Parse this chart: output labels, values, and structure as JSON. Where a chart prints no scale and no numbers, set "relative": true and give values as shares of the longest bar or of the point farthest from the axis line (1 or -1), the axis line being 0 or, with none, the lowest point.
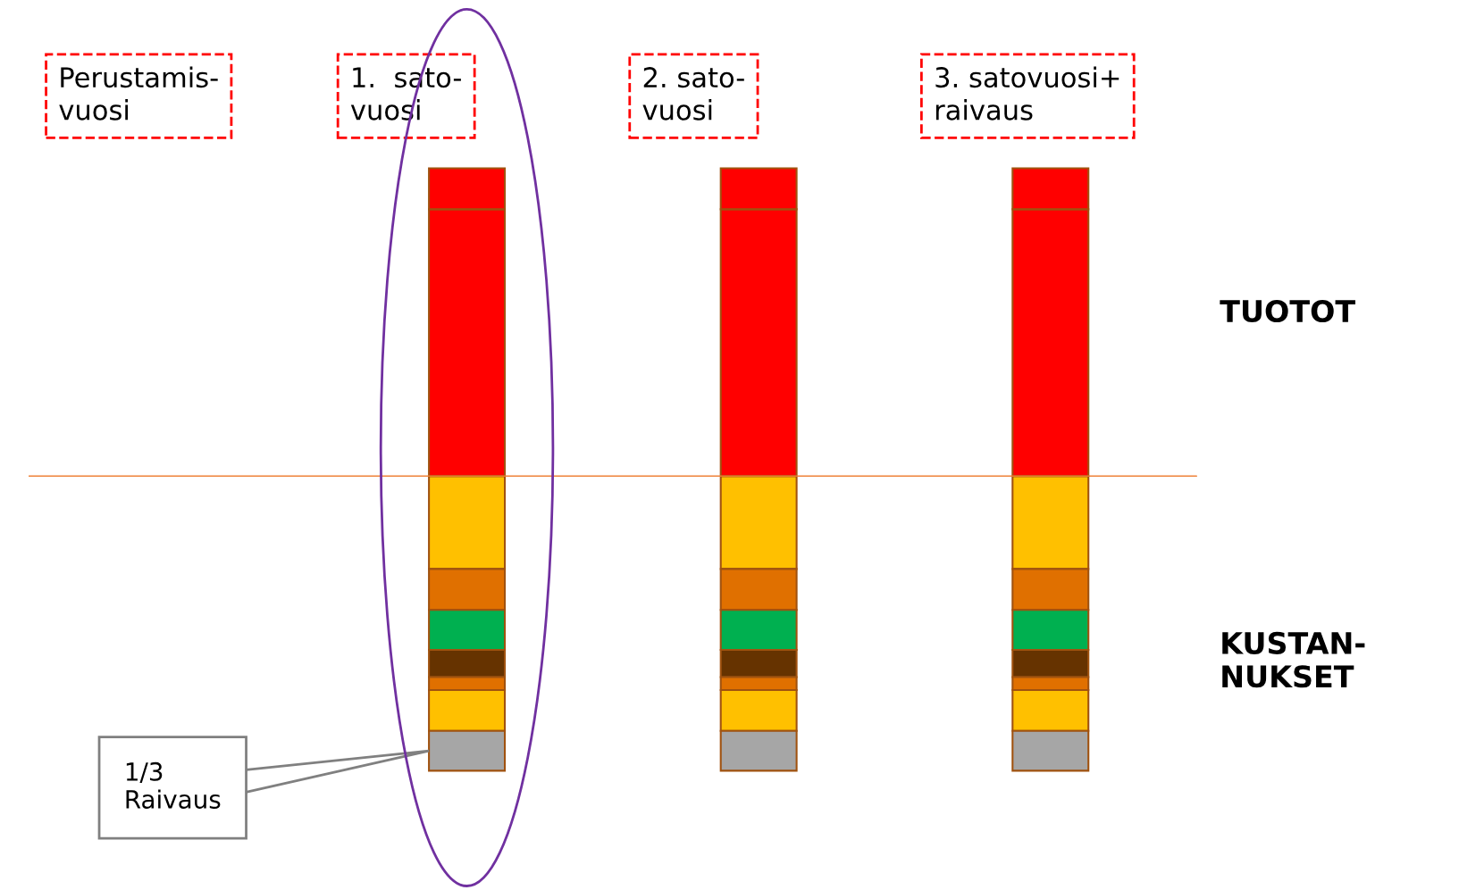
{
  "chart_data": [
    {
      "type": "bar",
      "stacked": true,
      "relative": true,
      "categories": [
        "Perustamis-\nvuosi",
        "1.  sato-\nvuosi",
        "2. sato-\nvuosi",
        "3. satovuosi+\nraivaus"
      ],
      "series": [
        {
          "color": "#ff0000",
          "values": [
            null,
            0.867,
            0.867,
            0.867
          ]
        },
        {
          "color": "#ff0000",
          "values": [
            null,
            0.133,
            0.133,
            0.133
          ]
        }
      ],
      "annotations": [
        "TUOTOT"
      ]
    },
    {
      "type": "bar",
      "stacked": true,
      "relative": true,
      "categories": [
        null,
        null,
        null,
        null
      ],
      "series": [
        {
          "color": "#ffc000",
          "values": [
            null,
            -0.315,
            -0.315,
            -0.315
          ]
        },
        {
          "color": "#e07000",
          "values": [
            null,
            -0.139,
            -0.139,
            -0.139
          ]
        },
        {
          "color": "#00b050",
          "values": [
            null,
            -0.136,
            -0.136,
            -0.136
          ]
        },
        {
          "color": "#663300",
          "values": [
            null,
            -0.092,
            -0.092,
            -0.092
          ]
        },
        {
          "color": "#e07000",
          "values": [
            null,
            -0.044,
            -0.044,
            -0.044
          ]
        },
        {
          "color": "#ffc000",
          "values": [
            null,
            -0.139,
            -0.139,
            -0.139
          ]
        },
        {
          "color": "#a6a6a6",
          "values": [
            null,
            -0.135,
            -0.135,
            -0.135
          ]
        }
      ],
      "annotations": [
        "KUSTAN-\nNUKSET",
        "1/3\nRaivaus"
      ]
    }
  ]
}
